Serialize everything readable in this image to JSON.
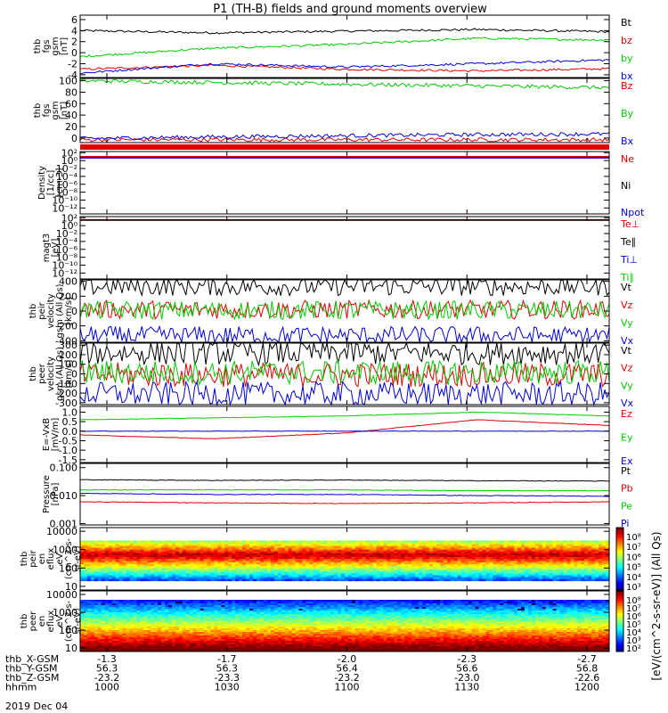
{
  "title": "P1 (TH-B) fields and ground moments overview",
  "colors": {
    "black": "#000000",
    "red": "#e00000",
    "green": "#00cc00",
    "blue": "#0000d8"
  },
  "panels": [
    {
      "id": "fgs",
      "ylabel": [
        "thb",
        "fgs",
        "gsm",
        "[nT]"
      ],
      "ticks": [
        "6",
        "4",
        "2",
        "0",
        "-2",
        "-4"
      ],
      "tickvals": [
        6,
        4,
        2,
        0,
        -2,
        -4
      ],
      "ylim": [
        -4.5,
        6.8
      ],
      "scale": "linear",
      "legend": [
        {
          "t": "Bt",
          "c": "black"
        },
        {
          "t": "bz",
          "c": "red"
        },
        {
          "t": "by",
          "c": "green"
        },
        {
          "t": "bx",
          "c": "blue"
        }
      ]
    },
    {
      "id": "fgs_full",
      "ylabel": [
        "thb",
        "fgs",
        "gsm",
        "[nT]"
      ],
      "ticks": [
        "100",
        "80",
        "60",
        "40",
        "20",
        "0"
      ],
      "tickvals": [
        100,
        80,
        60,
        40,
        20,
        0
      ],
      "ylim": [
        -8,
        104
      ],
      "scale": "linear",
      "legend": [
        {
          "t": "Bz",
          "c": "red"
        },
        {
          "t": "By",
          "c": "green"
        },
        {
          "t": "Bx",
          "c": "blue"
        }
      ]
    },
    {
      "id": "density",
      "ylabel": [
        "Density",
        "[1/cc]",
        "[cm-3]"
      ],
      "ticks": [
        "10²",
        "10⁰",
        "10⁻²",
        "10⁻⁴",
        "10⁻⁶",
        "10⁻⁸",
        "10⁻¹⁰",
        "10⁻¹²"
      ],
      "tickvals": [
        2,
        0,
        -2,
        -4,
        -6,
        -8,
        -10,
        -12
      ],
      "ylim": [
        -13.5,
        2.3
      ],
      "scale": "log",
      "legend": [
        {
          "t": "Ne",
          "c": "red"
        },
        {
          "t": "Ni",
          "c": "black"
        },
        {
          "t": "Npot",
          "c": "blue"
        }
      ]
    },
    {
      "id": "temp",
      "ylabel": [
        "magt3",
        "[eV]"
      ],
      "ticks": [
        "10²",
        "10⁰",
        "10⁻²",
        "10⁻⁴",
        "10⁻⁶",
        "10⁻⁸",
        "10⁻¹⁰",
        "10⁻¹²"
      ],
      "tickvals": [
        2,
        0,
        -2,
        -4,
        -6,
        -8,
        -10,
        -12
      ],
      "ylim": [
        -13.5,
        2.3
      ],
      "scale": "log",
      "legend": [
        {
          "t": "Te⊥",
          "c": "red"
        },
        {
          "t": "Te∥",
          "c": "black"
        },
        {
          "t": "Ti⊥",
          "c": "blue"
        },
        {
          "t": "Ti∥",
          "c": "green"
        }
      ]
    },
    {
      "id": "vi",
      "ylabel": [
        "thb",
        "peir",
        "velocity",
        "gsm (All Qs)",
        "[km/s]"
      ],
      "ticks": [
        "400",
        "200",
        "0",
        "-200",
        "-400"
      ],
      "tickvals": [
        400,
        200,
        0,
        -200,
        -400
      ],
      "ylim": [
        -420,
        420
      ],
      "scale": "linear",
      "legend": [
        {
          "t": "Vt",
          "c": "black"
        },
        {
          "t": "Vz",
          "c": "red"
        },
        {
          "t": "Vy",
          "c": "green"
        },
        {
          "t": "Vx",
          "c": "blue"
        }
      ]
    },
    {
      "id": "ve",
      "ylabel": [
        "thb",
        "peer",
        "velocity",
        "gsm (All Qs)",
        "[km/s]"
      ],
      "ticks": [
        "300",
        "200",
        "100",
        "0",
        "-100",
        "-200",
        "-300"
      ],
      "tickvals": [
        300,
        200,
        100,
        0,
        -100,
        -200,
        -300
      ],
      "ylim": [
        -320,
        320
      ],
      "scale": "linear",
      "legend": [
        {
          "t": "Vt",
          "c": "black"
        },
        {
          "t": "Vz",
          "c": "red"
        },
        {
          "t": "Vy",
          "c": "green"
        },
        {
          "t": "Vx",
          "c": "blue"
        }
      ]
    },
    {
      "id": "efield",
      "ylabel": [
        "E=-VxB",
        "[mV/m]"
      ],
      "ticks": [
        "1.0",
        "0.5",
        "0.0",
        "-0.5",
        "-1.0",
        "-1.5"
      ],
      "tickvals": [
        1.0,
        0.5,
        0.0,
        -0.5,
        -1.0,
        -1.5
      ],
      "ylim": [
        -1.65,
        1.3
      ],
      "scale": "linear",
      "legend": [
        {
          "t": "Ez",
          "c": "red"
        },
        {
          "t": "Ey",
          "c": "green"
        },
        {
          "t": "Ex",
          "c": "blue"
        }
      ]
    },
    {
      "id": "pressure",
      "ylabel": [
        "Pressure",
        "[nPa]"
      ],
      "ticks": [
        "0.100",
        "0.010",
        "0.001"
      ],
      "tickvals": [
        -1,
        -2,
        -3
      ],
      "ylim": [
        -3.05,
        -0.85
      ],
      "scale": "log",
      "legend": [
        {
          "t": "Pt",
          "c": "black"
        },
        {
          "t": "Pb",
          "c": "red"
        },
        {
          "t": "Pe",
          "c": "green"
        },
        {
          "t": "Pi",
          "c": "blue"
        }
      ]
    },
    {
      "id": "ion_spec",
      "ylabel": [
        "thb",
        "peir",
        "en",
        "eflux",
        "eV",
        "(cm^2-s-",
        "sr-eV)"
      ],
      "ticks": [
        "10000",
        "1000",
        "100",
        "10"
      ],
      "tickvals": [
        4,
        3,
        2,
        1
      ],
      "ylim": [
        0.8,
        4.2
      ],
      "scale": "log"
    },
    {
      "id": "el_spec",
      "ylabel": [
        "thb",
        "peer",
        "en",
        "eflux",
        "eV",
        "(cm^2-s-",
        "sr-eV)"
      ],
      "ticks": [
        "10000",
        "1000",
        "100",
        "10"
      ],
      "tickvals": [
        4,
        3,
        2,
        1
      ],
      "ylim": [
        0.8,
        4.2
      ],
      "scale": "log"
    }
  ],
  "colorbars": [
    {
      "ticks": [
        "10⁸",
        "10⁷",
        "10⁶",
        "10⁵",
        "10⁴",
        "10³"
      ]
    },
    {
      "ticks": [
        "10⁸",
        "10⁷",
        "10⁶",
        "10⁵",
        "10⁴",
        "10³",
        "10²"
      ]
    }
  ],
  "colorbar_label": "[eV/(cm^2-s-sr-eV)] (All Qs)",
  "ephemeris": {
    "rows": [
      {
        "label": "thb_X-GSM",
        "values": [
          "-1.3",
          "-1.7",
          "-2.0",
          "-2.3",
          "-2.7"
        ]
      },
      {
        "label": "thb_Y-GSM",
        "values": [
          "56.3",
          "56.3",
          "56.4",
          "56.6",
          "56.8"
        ]
      },
      {
        "label": "thb_Z-GSM",
        "values": [
          "-23.2",
          "-23.3",
          "-23.2",
          "-23.0",
          "-22.6"
        ]
      },
      {
        "label": "hhmm",
        "values": [
          "1000",
          "1030",
          "1100",
          "1130",
          "1200"
        ]
      }
    ],
    "date": "2019 Dec 04"
  },
  "chart_data": [
    {
      "type": "line",
      "title": "P1 (TH-B) fields and ground moments overview",
      "ylabel": "thb fgs gsm [nT]",
      "ylim": [
        -4.5,
        6.8
      ],
      "x": [
        "1000",
        "1030",
        "1100",
        "1130",
        "1200"
      ],
      "series": [
        {
          "name": "Bt",
          "values": [
            4.0,
            3.6,
            3.9,
            4.2,
            3.8
          ]
        },
        {
          "name": "bz",
          "values": [
            -3.0,
            -2.3,
            -3.0,
            -3.3,
            -2.9
          ]
        },
        {
          "name": "by",
          "values": [
            -0.7,
            0.8,
            1.5,
            2.6,
            2.3
          ]
        },
        {
          "name": "bx",
          "values": [
            -3.7,
            -2.0,
            -2.6,
            -2.0,
            -1.3
          ]
        }
      ]
    },
    {
      "type": "line",
      "ylabel": "thb fgs gsm [nT]",
      "ylim": [
        -8,
        104
      ],
      "x": [
        "1000",
        "1030",
        "1100",
        "1130",
        "1200"
      ],
      "series": [
        {
          "name": "Bz",
          "values": [
            -3,
            -3,
            -3,
            -3,
            -3
          ]
        },
        {
          "name": "By",
          "values": [
            100,
            97,
            94,
            91,
            88
          ]
        },
        {
          "name": "Bx",
          "values": [
            -1,
            2,
            4,
            6,
            7
          ]
        }
      ]
    },
    {
      "type": "line",
      "ylabel": "Density [1/cc] [cm-3]",
      "scale": "log",
      "x": [
        "1000",
        "1030",
        "1100",
        "1130",
        "1200"
      ],
      "series": [
        {
          "name": "Ne",
          "values": [
            10,
            10,
            10,
            10,
            10
          ]
        },
        {
          "name": "Npot",
          "values": [
            5,
            5,
            5,
            5,
            5
          ]
        }
      ]
    },
    {
      "type": "line",
      "ylabel": "magt3 [eV]",
      "scale": "log",
      "x": [
        "1000",
        "1030",
        "1100",
        "1130",
        "1200"
      ],
      "series": [
        {
          "name": "Te⊥",
          "values": [
            30,
            30,
            30,
            30,
            30
          ]
        },
        {
          "name": "Te∥",
          "values": [
            25,
            25,
            25,
            25,
            25
          ]
        }
      ]
    },
    {
      "type": "line",
      "ylabel": "thb peir velocity gsm (All Qs) [km/s]",
      "ylim": [
        -420,
        420
      ],
      "x": [
        "1000",
        "1030",
        "1100",
        "1130",
        "1200"
      ],
      "series": [
        {
          "name": "Vt",
          "values": [
            330,
            330,
            330,
            330,
            330
          ]
        },
        {
          "name": "Vz",
          "values": [
            20,
            20,
            20,
            20,
            20
          ]
        },
        {
          "name": "Vy",
          "values": [
            10,
            10,
            10,
            10,
            10
          ]
        },
        {
          "name": "Vx",
          "values": [
            -330,
            -330,
            -330,
            -330,
            -330
          ]
        }
      ]
    },
    {
      "type": "line",
      "ylabel": "thb peer velocity gsm (All Qs) [km/s]",
      "ylim": [
        -320,
        320
      ],
      "x": [
        "1000",
        "1030",
        "1100",
        "1130",
        "1200"
      ],
      "series": [
        {
          "name": "Vt",
          "values": [
            220,
            220,
            220,
            220,
            220
          ]
        },
        {
          "name": "Vz",
          "values": [
            -10,
            -10,
            -10,
            -10,
            -10
          ]
        },
        {
          "name": "Vy",
          "values": [
            15,
            15,
            15,
            15,
            15
          ]
        },
        {
          "name": "Vx",
          "values": [
            -210,
            -210,
            -210,
            -210,
            -210
          ]
        }
      ]
    },
    {
      "type": "line",
      "ylabel": "E=-VxB [mV/m]",
      "ylim": [
        -1.65,
        1.3
      ],
      "x": [
        "1000",
        "1030",
        "1100",
        "1130",
        "1200"
      ],
      "series": [
        {
          "name": "Ez",
          "values": [
            -0.2,
            -0.4,
            -0.1,
            0.6,
            0.3
          ]
        },
        {
          "name": "Ey",
          "values": [
            0.6,
            0.7,
            0.8,
            1.0,
            0.8
          ]
        },
        {
          "name": "Ex",
          "values": [
            0.0,
            0.0,
            0.0,
            0.0,
            0.0
          ]
        }
      ]
    },
    {
      "type": "line",
      "ylabel": "Pressure [nPa]",
      "scale": "log",
      "x": [
        "1000",
        "1030",
        "1100",
        "1130",
        "1200"
      ],
      "series": [
        {
          "name": "Pt",
          "values": [
            0.037,
            0.035,
            0.036,
            0.034,
            0.033
          ]
        },
        {
          "name": "Pb",
          "values": [
            0.006,
            0.0055,
            0.0052,
            0.0055,
            0.006
          ]
        },
        {
          "name": "Pe",
          "values": [
            0.016,
            0.016,
            0.016,
            0.015,
            0.015
          ]
        },
        {
          "name": "Pi",
          "values": [
            0.012,
            0.011,
            0.011,
            0.01,
            0.0095
          ]
        }
      ]
    },
    {
      "type": "heatmap",
      "ylabel": "thb peir en eflux",
      "scale": "log",
      "y_range": [
        20,
        3000
      ],
      "peak_energy": 500,
      "x": [
        "1000",
        "1030",
        "1100",
        "1130",
        "1200"
      ]
    },
    {
      "type": "heatmap",
      "ylabel": "thb peer en eflux",
      "scale": "log",
      "y_range": [
        5,
        5000
      ],
      "peak_energy": 20,
      "x": [
        "1000",
        "1030",
        "1100",
        "1130",
        "1200"
      ]
    }
  ]
}
